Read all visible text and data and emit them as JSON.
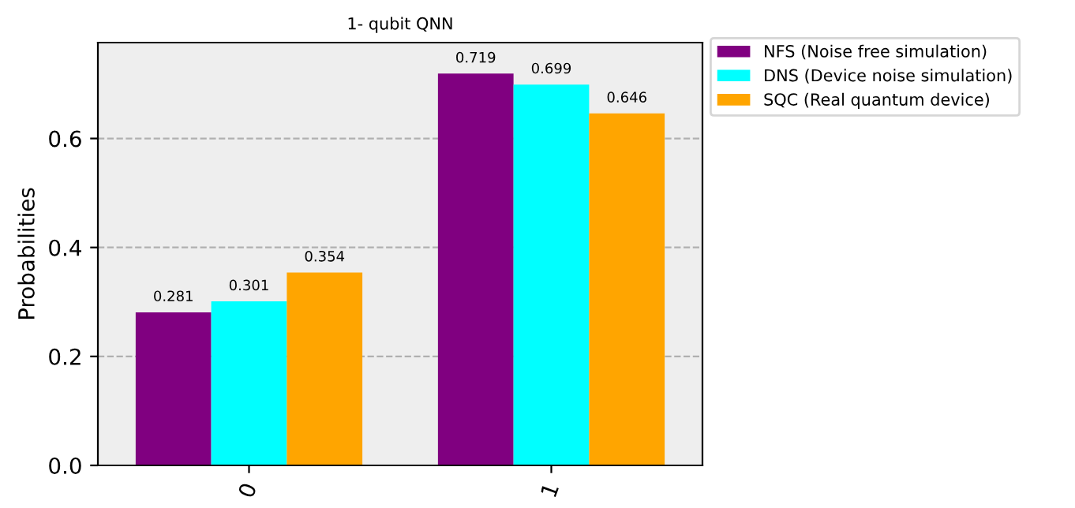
{
  "chart_data": {
    "type": "bar",
    "title": "1- qubit QNN",
    "ylabel": "Probabilities",
    "categories": [
      "0",
      "1"
    ],
    "series": [
      {
        "name": "NFS (Noise free simulation)",
        "color": "#800080",
        "values": [
          0.281,
          0.719
        ]
      },
      {
        "name": "DNS (Device noise simulation)",
        "color": "#00ffff",
        "values": [
          0.301,
          0.699
        ]
      },
      {
        "name": "SQC (Real quantum device)",
        "color": "#ffa500",
        "values": [
          0.354,
          0.646
        ]
      }
    ],
    "ylim": [
      0,
      0.776
    ],
    "yticks": [
      {
        "value": 0,
        "label": "0.0"
      },
      0.2,
      0.4,
      0.6
    ],
    "grid": "y",
    "legend": "top right",
    "data_labels": true
  }
}
